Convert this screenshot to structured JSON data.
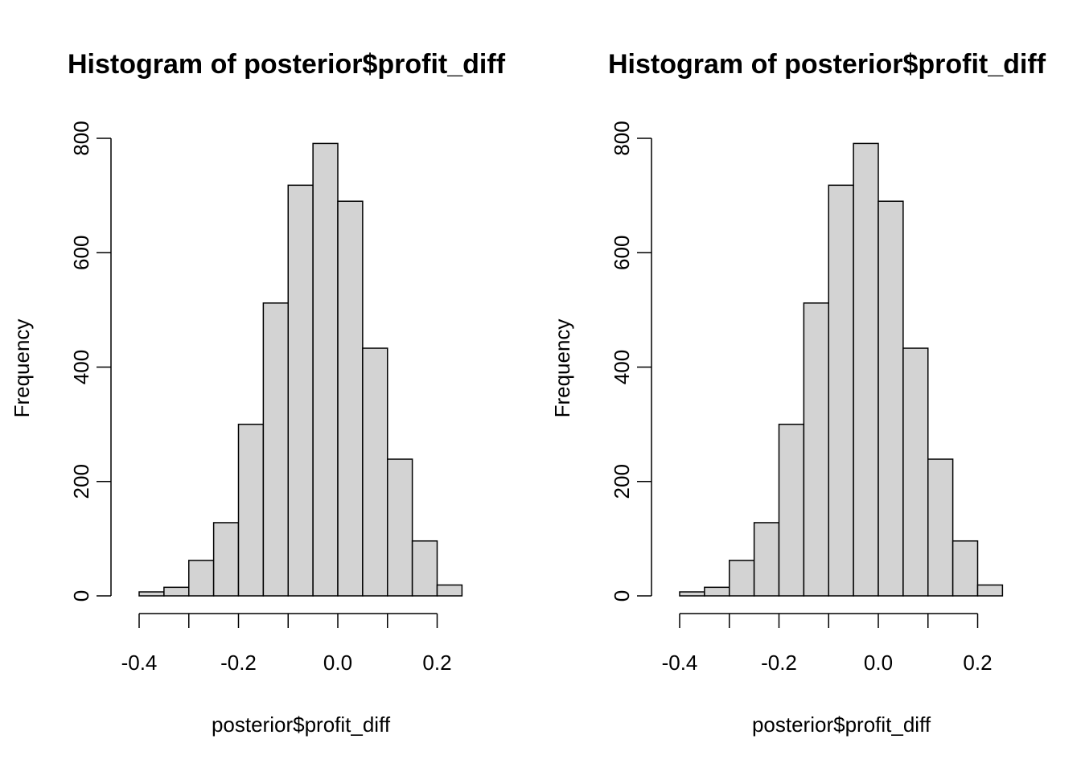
{
  "chart_data": [
    {
      "type": "bar",
      "title": "Histogram of posterior$profit_diff",
      "xlabel": "posterior$profit_diff",
      "ylabel": "Frequency",
      "bin_edges": [
        -0.4,
        -0.35,
        -0.3,
        -0.25,
        -0.2,
        -0.15,
        -0.1,
        -0.05,
        0.0,
        0.05,
        0.1,
        0.15,
        0.2,
        0.25
      ],
      "values": [
        7,
        15,
        62,
        128,
        300,
        512,
        718,
        791,
        690,
        433,
        239,
        96,
        19
      ],
      "xlim": [
        -0.4,
        0.25
      ],
      "ylim": [
        0,
        800
      ],
      "x_ticks": [
        -0.4,
        -0.2,
        0.0,
        0.2
      ],
      "x_tick_labels": [
        "-0.4",
        "-0.2",
        "0.0",
        "0.2"
      ],
      "y_ticks": [
        0,
        200,
        400,
        600,
        800
      ],
      "y_tick_labels": [
        "0",
        "200",
        "400",
        "600",
        "800"
      ],
      "x_minor_ticks": [
        -0.4,
        -0.3,
        -0.2,
        -0.1,
        0.0,
        0.1,
        0.2
      ],
      "grid": false,
      "bar_color": "#d3d3d3"
    },
    {
      "type": "bar",
      "title": "Histogram of posterior$profit_diff",
      "xlabel": "posterior$profit_diff",
      "ylabel": "Frequency",
      "bin_edges": [
        -0.4,
        -0.35,
        -0.3,
        -0.25,
        -0.2,
        -0.15,
        -0.1,
        -0.05,
        0.0,
        0.05,
        0.1,
        0.15,
        0.2,
        0.25
      ],
      "values": [
        7,
        15,
        62,
        128,
        300,
        512,
        718,
        791,
        690,
        433,
        239,
        96,
        19
      ],
      "xlim": [
        -0.4,
        0.25
      ],
      "ylim": [
        0,
        800
      ],
      "x_ticks": [
        -0.4,
        -0.2,
        0.0,
        0.2
      ],
      "x_tick_labels": [
        "-0.4",
        "-0.2",
        "0.0",
        "0.2"
      ],
      "y_ticks": [
        0,
        200,
        400,
        600,
        800
      ],
      "y_tick_labels": [
        "0",
        "200",
        "400",
        "600",
        "800"
      ],
      "x_minor_ticks": [
        -0.4,
        -0.3,
        -0.2,
        -0.1,
        0.0,
        0.1,
        0.2
      ],
      "grid": false,
      "bar_color": "#d3d3d3"
    }
  ]
}
